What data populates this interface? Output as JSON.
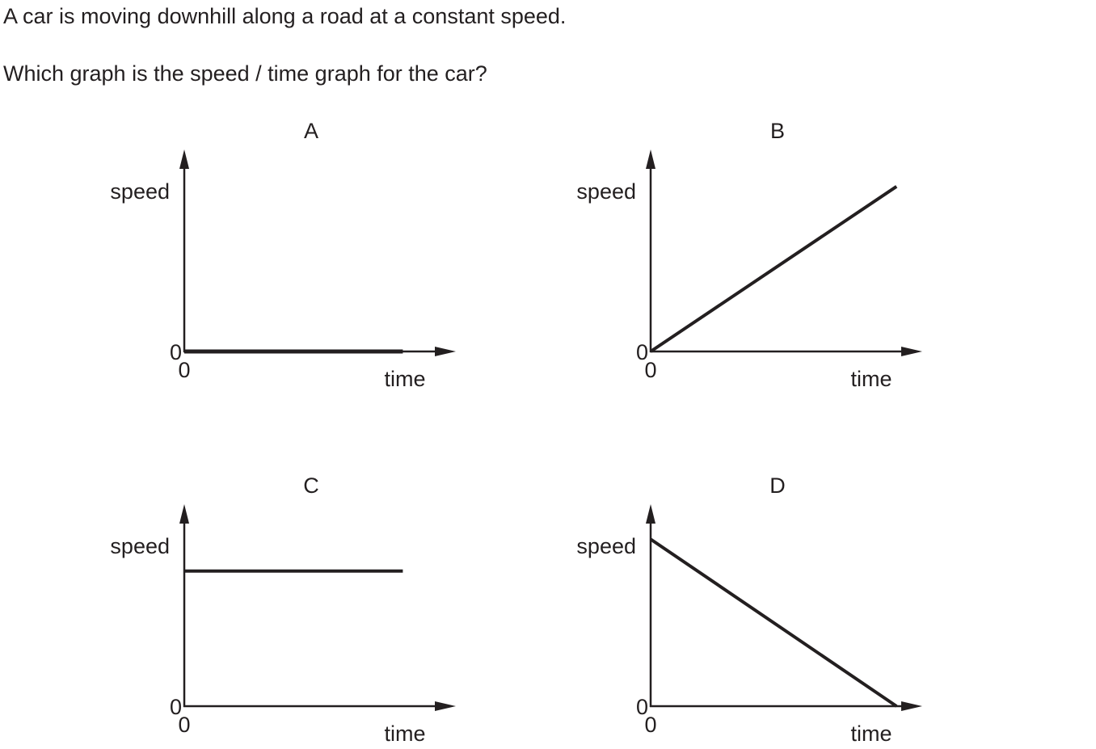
{
  "question": {
    "stem": "A car is moving downhill along a road at a constant speed.",
    "prompt": "Which graph is the speed / time graph for the car?"
  },
  "colors": {
    "ink": "#231f20",
    "background": "#ffffff"
  },
  "chart_data": [
    {
      "type": "line",
      "title": "A",
      "xlabel": "time",
      "ylabel": "speed",
      "x_origin_label": "0",
      "y_origin_label": "0",
      "xlim": [
        0,
        1
      ],
      "ylim": [
        0,
        1
      ],
      "series": [
        {
          "name": "speed",
          "x": [
            0,
            0.8
          ],
          "y": [
            0,
            0
          ]
        }
      ]
    },
    {
      "type": "line",
      "title": "B",
      "xlabel": "time",
      "ylabel": "speed",
      "x_origin_label": "0",
      "y_origin_label": "0",
      "xlim": [
        0,
        1
      ],
      "ylim": [
        0,
        1
      ],
      "series": [
        {
          "name": "speed",
          "x": [
            0,
            0.9
          ],
          "y": [
            0,
            0.83
          ]
        }
      ]
    },
    {
      "type": "line",
      "title": "C",
      "xlabel": "time",
      "ylabel": "speed",
      "x_origin_label": "0",
      "y_origin_label": "0",
      "xlim": [
        0,
        1
      ],
      "ylim": [
        0,
        1
      ],
      "series": [
        {
          "name": "speed",
          "x": [
            0,
            0.8
          ],
          "y": [
            0.68,
            0.68
          ]
        }
      ]
    },
    {
      "type": "line",
      "title": "D",
      "xlabel": "time",
      "ylabel": "speed",
      "x_origin_label": "0",
      "y_origin_label": "0",
      "xlim": [
        0,
        1
      ],
      "ylim": [
        0,
        1
      ],
      "series": [
        {
          "name": "speed",
          "x": [
            0,
            0.9
          ],
          "y": [
            0.84,
            0
          ]
        }
      ]
    }
  ]
}
